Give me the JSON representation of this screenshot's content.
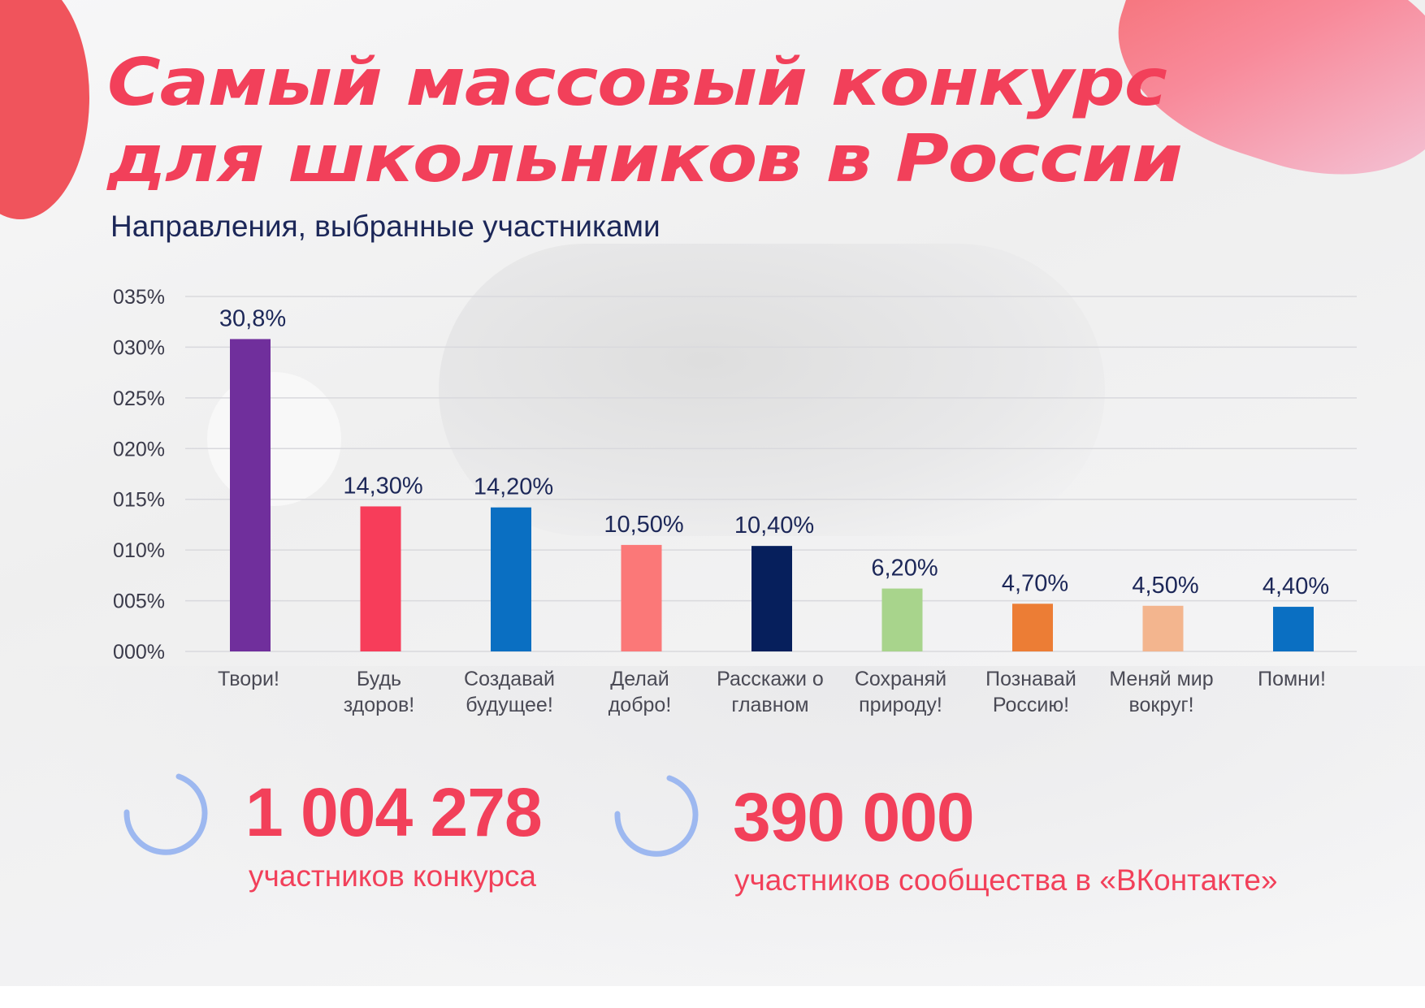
{
  "title": [
    "Самый массовый конкурс",
    "для школьников в России"
  ],
  "subtitle": "Направления, выбранные участниками",
  "chart_data": {
    "type": "bar",
    "title": "Направления, выбранные участниками",
    "categories": [
      [
        "Твори!"
      ],
      [
        "Будь",
        "здоров!"
      ],
      [
        "Создавай",
        "будущее!"
      ],
      [
        "Делай",
        "добро!"
      ],
      [
        "Расскажи о",
        "главном"
      ],
      [
        "Сохраняй",
        "природу!"
      ],
      [
        "Познавай",
        "Россию!"
      ],
      [
        "Меняй мир",
        "вокруг!"
      ],
      [
        "Помни!"
      ]
    ],
    "values": [
      30.8,
      14.3,
      14.2,
      10.5,
      10.4,
      6.2,
      4.7,
      4.5,
      4.4
    ],
    "data_labels": [
      "30,8%",
      "14,30%",
      "14,20%",
      "10,50%",
      "10,40%",
      "6,20%",
      "4,70%",
      "4,50%",
      "4,40%"
    ],
    "colors": [
      "#702f9c",
      "#f73d5a",
      "#0a6fc2",
      "#fb7878",
      "#061f5c",
      "#a8d48c",
      "#ec7d35",
      "#f3b58e",
      "#0a6fc2"
    ],
    "yticks": [
      0,
      5,
      10,
      15,
      20,
      25,
      30,
      35
    ],
    "ytick_labels": [
      "000%",
      "005%",
      "010%",
      "015%",
      "020%",
      "025%",
      "030%",
      "035%"
    ],
    "ylim": [
      0,
      35
    ],
    "grid": true,
    "legend": "none",
    "xlabel": "",
    "ylabel": ""
  },
  "stats": [
    {
      "value": "1 004 278",
      "label": "участников конкурса",
      "icon": "progress-arc-icon"
    },
    {
      "value": "390 000",
      "label": "участников сообщества в «ВКонтакте»",
      "icon": "progress-arc-icon"
    }
  ],
  "colors": {
    "accent": "#f2405a",
    "text_dark": "#1c2758",
    "axis_text": "#3a3a4a",
    "icon": "#9db8f0"
  }
}
